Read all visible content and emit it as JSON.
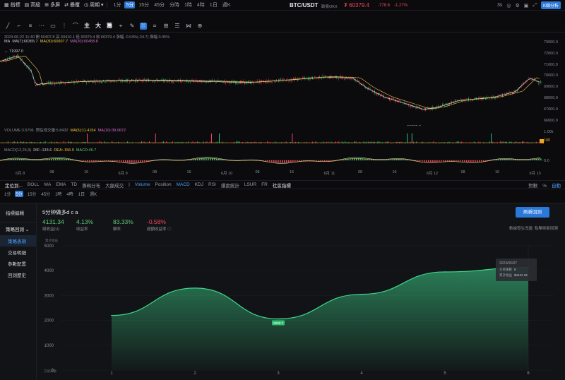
{
  "top": {
    "menu": [
      {
        "icon": "grid-icon",
        "label": "指標"
      },
      {
        "icon": "layout-icon",
        "label": "高級"
      },
      {
        "icon": "multi-chart-icon",
        "label": "多屏"
      },
      {
        "icon": "compare-icon",
        "label": "疊覆"
      },
      {
        "icon": "period-icon",
        "label": "周期 ▾"
      }
    ],
    "timeframes": [
      "1分",
      "5分",
      "15分",
      "45分",
      "分時",
      "1時",
      "4時",
      "1日",
      "週K"
    ],
    "active_timeframe": "5分",
    "pair": "BTC/USDT",
    "exchange": "歐易OKX",
    "price": "₮ 60379.4",
    "change": "-778.6",
    "change_pct": "-1.27%",
    "right_label": "3s",
    "k_button": "K線分析"
  },
  "tools": {
    "items": [
      "╱",
      "⌐",
      "≡",
      "⋯",
      "▭",
      "⋮",
      "⌒",
      "主",
      "大",
      "籌",
      "⌖",
      "✎",
      "⛆",
      "⌗",
      "⊞",
      "☰",
      "⋈",
      "⊕"
    ],
    "active_index": 12
  },
  "kline": {
    "info_line": "2024-06-22 11:40  開 60407.8  高 60410.1  低 60379.4  收 60379.4  漲幅 -0.04%(-24.7)  振幅 0.05%",
    "ma_label": "MA",
    "ma7": "MA(7):60365.7",
    "ma30": "MA(30):60607.7",
    "ma20": "MA(20):60458.8",
    "high_mark": "← 71997.0",
    "low_mark": "66000.0 →",
    "y_ticks": [
      "73000.0",
      "72000.0",
      "71000.0",
      "70000.0",
      "69000.0",
      "68000.0",
      "67000.0",
      "66000.0"
    ]
  },
  "volume": {
    "label": "VOLUME",
    "value": "VOLUME:3.5706",
    "pred": "預估成交量:5.8432",
    "ma5": "MA(5):11.4154",
    "ma10": "MA(10):39.0672",
    "y_ticks": [
      "1.00k",
      "100"
    ]
  },
  "macd": {
    "label": "MACD(12,26,9)",
    "dif": "DIF:-133.6",
    "dea": "DEA:-156.9",
    "macd": "MACD:46.7",
    "y_ticks": [
      "0.0"
    ]
  },
  "x_axis": [
    "6月 8",
    "08",
    "16",
    "6月 9",
    "08",
    "16",
    "6月 10",
    "08",
    "16",
    "6月 11",
    "08",
    "16",
    "6月 12",
    "08",
    "16",
    "6月 13"
  ],
  "indicator_bar": {
    "left": [
      "定位到...",
      "BOLL",
      "MA",
      "EMA",
      "TD",
      "籌碼分布",
      "大額成交"
    ],
    "right": [
      "Volume",
      "Position",
      "MACD",
      "KDJ",
      "RSI",
      "爆倉統計",
      "LSUR",
      "FR"
    ],
    "community": "社區指標",
    "end": [
      "對數",
      "%",
      "自動"
    ]
  },
  "tf_bar": [
    "1分",
    "5分",
    "15分",
    "45分",
    "1時",
    "4時",
    "1日",
    "週K"
  ],
  "tf_bar_active": "5分",
  "side": {
    "header": "指標編輯",
    "group": "策略回測 ⌄",
    "items": [
      "策略表現",
      "交易明細",
      "參數配置",
      "回測歷史"
    ],
    "active": "策略表現"
  },
  "strategy": {
    "title": "5分钟做多d c a",
    "stats": [
      {
        "value": "4131.34",
        "label": "總收益(U)",
        "color": "#5ec97a"
      },
      {
        "value": "4.13%",
        "label": "收益率",
        "color": "#5ec97a"
      },
      {
        "value": "83.33%",
        "label": "勝率",
        "color": "#5ec97a"
      },
      {
        "value": "-0.58%",
        "label": "超額收益率 ⓘ",
        "color": "#f0465a"
      }
    ],
    "button": "刷新回測",
    "hint": "數據發生改變, 點擊刷新回測"
  },
  "chart_data": {
    "type": "area",
    "x": [
      1,
      2,
      3,
      4,
      5,
      6
    ],
    "values": [
      2200,
      3300,
      2059.7,
      3050,
      3950,
      4131.34
    ],
    "ylabel": "累計收益",
    "xlabel": "交易筆數",
    "ylim": [
      0,
      5000
    ],
    "y_ticks": [
      0,
      1000,
      2000,
      3000,
      4000,
      5000
    ],
    "min_label": "2059.7",
    "tooltip": {
      "date": "2024/06/07",
      "rows": [
        {
          "k": "交易筆數",
          "v": "6"
        },
        {
          "k": "累計收益",
          "v": "$4131.34"
        }
      ]
    },
    "color": "#3dd68c"
  }
}
